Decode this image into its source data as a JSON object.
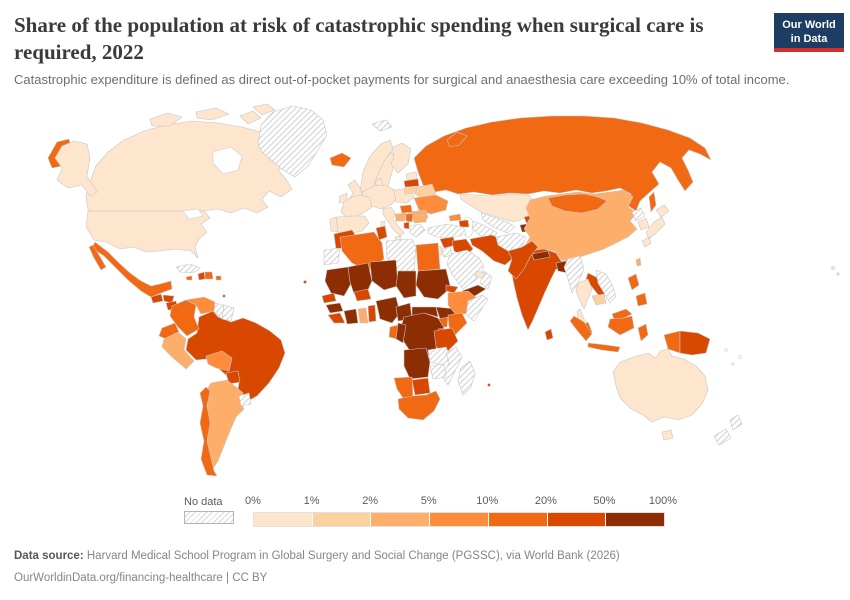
{
  "header": {
    "title": "Share of the population at risk of catastrophic spending when surgical care is required, 2022",
    "subtitle": "Catastrophic expenditure is defined as direct out-of-pocket payments for surgical and anaesthesia care exceeding 10% of total income.",
    "logo": {
      "line1": "Our World",
      "line2": "in Data",
      "bg_color": "#1d3d63",
      "accent_color": "#d42e2e"
    }
  },
  "legend": {
    "no_data_label": "No data",
    "tick_labels": [
      "0%",
      "1%",
      "2%",
      "5%",
      "10%",
      "20%",
      "50%",
      "100%"
    ]
  },
  "footer": {
    "source_label": "Data source:",
    "source_text": " Harvard Medical School Program in Global Surgery and Social Change (PGSSC), via World Bank (2026)",
    "license_text": "OurWorldinData.org/financing-healthcare | CC BY"
  },
  "chart_data": {
    "type": "heatmap",
    "subtype": "choropleth-world-map",
    "title": "Share of the population at risk of catastrophic spending when surgical care is required",
    "year": 2022,
    "unit": "% of population",
    "scale_ticks": [
      "0%",
      "1%",
      "2%",
      "5%",
      "10%",
      "20%",
      "50%",
      "100%"
    ],
    "legend_position": "bottom",
    "no_data_label": "No data",
    "no_data_pattern": "diagonal-hatch",
    "bins": [
      {
        "label": "0-1%",
        "color": "#fee6ce"
      },
      {
        "label": "1-2%",
        "color": "#fdd0a2"
      },
      {
        "label": "2-5%",
        "color": "#fdae6b"
      },
      {
        "label": "5-10%",
        "color": "#fd8d3c"
      },
      {
        "label": "10-20%",
        "color": "#f16913"
      },
      {
        "label": "20-50%",
        "color": "#d94801"
      },
      {
        "label": "50-100%",
        "color": "#8c2d04"
      }
    ],
    "countries": {
      "Canada": "0-1%",
      "United States": "0-1%",
      "Greenland": "No data",
      "Mexico": "10-20%",
      "Guatemala": "20-50%",
      "Honduras": "20-50%",
      "Nicaragua": "20-50%",
      "Costa Rica": "No data",
      "Panama": "10-20%",
      "Cuba": "No data",
      "Haiti": "20-50%",
      "Dominican Republic": "10-20%",
      "Jamaica": "10-20%",
      "Puerto Rico": "10-20%",
      "Trinidad and Tobago": "20-50%",
      "Cape Verde": "20-50%",
      "Colombia": "10-20%",
      "Venezuela": "5-10%",
      "Guyana": "No data",
      "Suriname": "No data",
      "Ecuador": "10-20%",
      "Peru": "2-5%",
      "Brazil": "20-50%",
      "Bolivia": "5-10%",
      "Paraguay": "20-50%",
      "Uruguay": "No data",
      "Argentina": "2-5%",
      "Chile": "10-20%",
      "Iceland": "10-20%",
      "Norway": "0-1%",
      "Sweden": "0-1%",
      "Finland": "0-1%",
      "Denmark": "0-1%",
      "United Kingdom": "0-1%",
      "Ireland": "0-1%",
      "France": "0-1%",
      "Germany": "0-1%",
      "Spain": "0-1%",
      "Portugal": "0-1%",
      "Italy": "0-1%",
      "Poland": "0-1%",
      "Estonia": "0-1%",
      "Latvia": "20-50%",
      "Lithuania": "1-2%",
      "Belarus": "1-2%",
      "Ukraine": "5-10%",
      "Romania": "2-5%",
      "Hungary": "10-20%",
      "Croatia": "2-5%",
      "Serbia": "10-20%",
      "Bulgaria": "2-5%",
      "Albania": "20-50%",
      "Greece": "No data",
      "Svalbard": "No data",
      "Russia": "10-20%",
      "Kazakhstan": "0-1%",
      "Uzbekistan": "No data",
      "Turkmenistan": "No data",
      "Kyrgyzstan": "20-50%",
      "Tajikistan": "50-100%",
      "Georgia": "5-10%",
      "Azerbaijan": "20-50%",
      "Turkey": "No data",
      "Syria": "20-50%",
      "Israel": "0-1%",
      "Jordan": "No data",
      "Iraq": "20-50%",
      "Iran": "20-50%",
      "Saudi Arabia": "No data",
      "Yemen": "50-100%",
      "Oman": "No data",
      "United Arab Emirates": "0-1%",
      "Afghanistan": "No data",
      "Pakistan": "20-50%",
      "China": "2-5%",
      "Mongolia": "10-20%",
      "India": "20-50%",
      "Nepal": "50-100%",
      "Bangladesh": "50-100%",
      "Sri Lanka": "20-50%",
      "Myanmar": "No data",
      "Thailand": "0-1%",
      "Laos": "20-50%",
      "Vietnam": "No data",
      "Cambodia": "1-2%",
      "Malaysia": "10-20%",
      "Indonesia": "10-20%",
      "Papua New Guinea": "20-50%",
      "Philippines": "10-20%",
      "Taiwan": "2-5%",
      "North Korea": "No data",
      "South Korea": "0-1%",
      "Japan": "0-1%",
      "Morocco": "20-50%",
      "Western Sahara": "No data",
      "Algeria": "10-20%",
      "Tunisia": "20-50%",
      "Libya": "No data",
      "Egypt": "10-20%",
      "Mauritania": "50-100%",
      "Mali": "50-100%",
      "Niger": "50-100%",
      "Chad": "50-100%",
      "Sudan": "50-100%",
      "Eritrea": "20-50%",
      "Senegal": "20-50%",
      "Guinea": "50-100%",
      "Liberia": "20-50%",
      "Ivory Coast": "50-100%",
      "Ghana": "2-5%",
      "Benin": "20-50%",
      "Burkina Faso": "20-50%",
      "Nigeria": "50-100%",
      "Cameroon": "50-100%",
      "Central African Republic": "50-100%",
      "South Sudan": "50-100%",
      "Ethiopia": "5-10%",
      "Somalia": "No data",
      "Uganda": "10-20%",
      "Kenya": "10-20%",
      "Rwanda": "20-50%",
      "Democratic Republic of Congo": "50-100%",
      "Gabon": "10-20%",
      "Congo": "50-100%",
      "Angola": "50-100%",
      "Zambia": "No data",
      "Tanzania": "20-50%",
      "Mozambique": "No data",
      "Zimbabwe": "No data",
      "Botswana": "20-50%",
      "Namibia": "10-20%",
      "South Africa": "10-20%",
      "Madagascar": "No data",
      "Mauritius": "20-50%",
      "Australia": "0-1%",
      "New Zealand": "No data"
    }
  }
}
